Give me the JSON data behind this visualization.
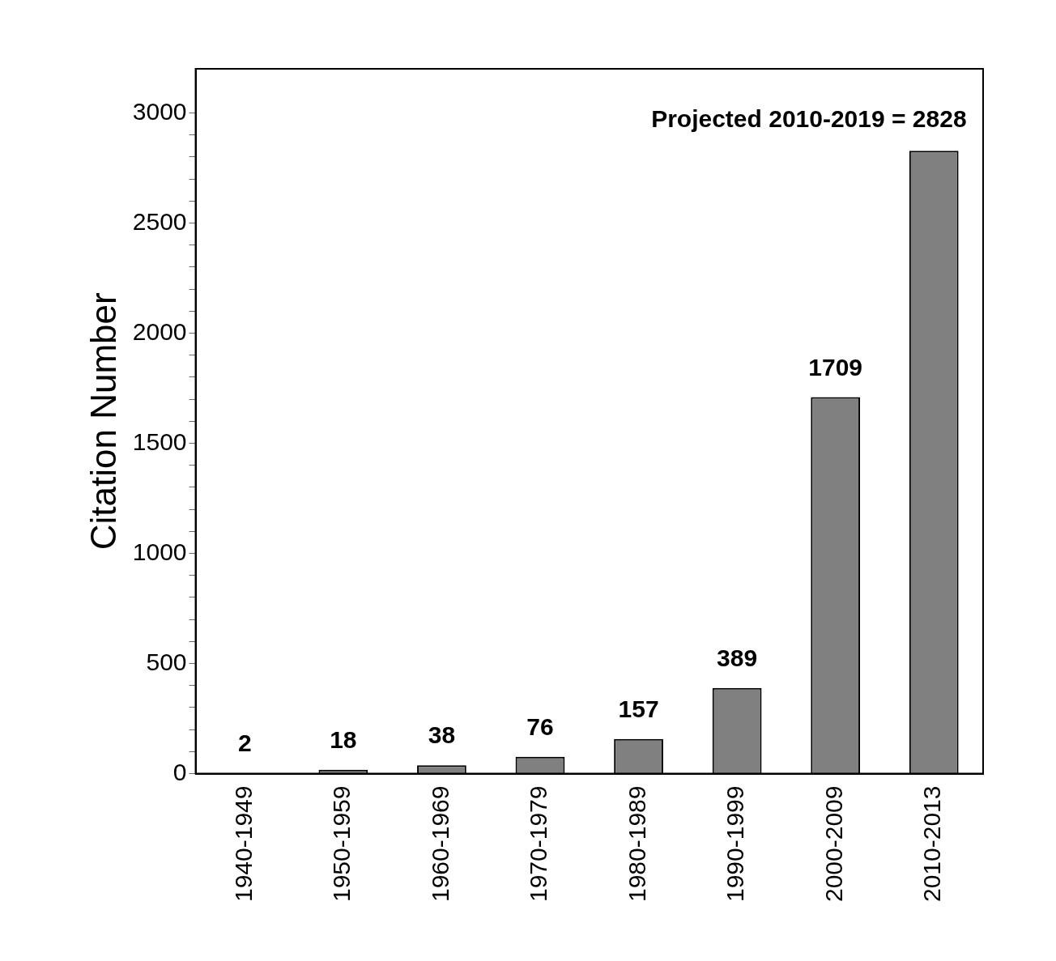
{
  "chart_data": {
    "type": "bar",
    "ylabel": "Citation Number",
    "categories": [
      "1940-1949",
      "1950-1959",
      "1960-1969",
      "1970-1979",
      "1980-1989",
      "1990-1999",
      "2000-2009",
      "2010-2013"
    ],
    "values": [
      2,
      18,
      38,
      76,
      157,
      389,
      1709,
      2828
    ],
    "color": "#808080",
    "value_labels": [
      "2",
      "18",
      "38",
      "76",
      "157",
      "389",
      "1709",
      null
    ],
    "annotations": [
      {
        "text": "Projected 2010-2019 = 2828",
        "x": "2010-2013",
        "y": 2828
      }
    ],
    "ylim": [
      0,
      3200
    ],
    "yticks": [
      0,
      {
        "value": 100,
        "label": null
      },
      {
        "value": 200,
        "label": null
      },
      {
        "value": 300,
        "label": null
      },
      {
        "value": 400,
        "label": null
      },
      500,
      {
        "value": 600,
        "label": null
      },
      {
        "value": 700,
        "label": null
      },
      {
        "value": 800,
        "label": null
      },
      {
        "value": 900,
        "label": null
      },
      1000,
      {
        "value": 1100,
        "label": null
      },
      {
        "value": 1200,
        "label": null
      },
      {
        "value": 1300,
        "label": null
      },
      {
        "value": 1400,
        "label": null
      },
      1500,
      {
        "value": 1600,
        "label": null
      },
      {
        "value": 1700,
        "label": null
      },
      {
        "value": 1800,
        "label": null
      },
      {
        "value": 1900,
        "label": null
      },
      2000,
      {
        "value": 2100,
        "label": null
      },
      {
        "value": 2200,
        "label": null
      },
      {
        "value": 2300,
        "label": null
      },
      {
        "value": 2400,
        "label": null
      },
      2500,
      {
        "value": 2600,
        "label": null
      },
      {
        "value": 2700,
        "label": null
      },
      {
        "value": 2800,
        "label": null
      },
      {
        "value": 2900,
        "label": null
      },
      3000
    ],
    "grid": false,
    "legend": false
  }
}
